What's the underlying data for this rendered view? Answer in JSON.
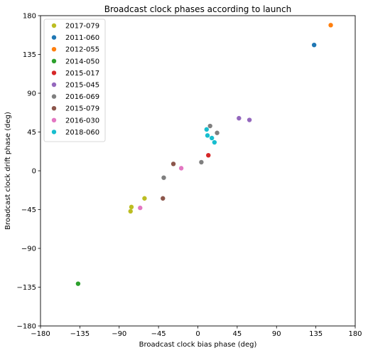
{
  "chart_data": {
    "type": "scatter",
    "title": "Broadcast clock phases according to launch",
    "xlabel": "Broadcast clock bias phase (deg)",
    "ylabel": "Broadcast clock drift phase (deg)",
    "xlim": [
      -180,
      180
    ],
    "ylim": [
      -180,
      180
    ],
    "xticks": [
      -180,
      -135,
      -90,
      -45,
      0,
      45,
      90,
      135,
      180
    ],
    "yticks": [
      -180,
      -135,
      -90,
      -45,
      0,
      45,
      90,
      135,
      180
    ],
    "grid": false,
    "legend_position": "top-left",
    "series": [
      {
        "name": "2017-079",
        "color": "#bcbd22",
        "points": [
          [
            -77,
            -47
          ],
          [
            -76,
            -42
          ],
          [
            -61,
            -32
          ]
        ]
      },
      {
        "name": "2011-060",
        "color": "#1f77b4",
        "points": [
          [
            133,
            146
          ]
        ]
      },
      {
        "name": "2012-055",
        "color": "#ff7f0e",
        "points": [
          [
            152,
            169
          ]
        ]
      },
      {
        "name": "2014-050",
        "color": "#2ca02c",
        "points": [
          [
            -137,
            -131
          ]
        ]
      },
      {
        "name": "2015-017",
        "color": "#d62728",
        "points": [
          [
            12,
            18
          ]
        ]
      },
      {
        "name": "2015-045",
        "color": "#9467bd",
        "points": [
          [
            47,
            61
          ],
          [
            59,
            59
          ]
        ]
      },
      {
        "name": "2016-069",
        "color": "#7f7f7f",
        "points": [
          [
            -39,
            -8
          ],
          [
            4,
            10
          ],
          [
            14,
            52
          ],
          [
            22,
            44
          ]
        ]
      },
      {
        "name": "2015-079",
        "color": "#8c564b",
        "points": [
          [
            -28,
            8
          ],
          [
            -40,
            -32
          ]
        ]
      },
      {
        "name": "2016-030",
        "color": "#e377c2",
        "points": [
          [
            -19,
            3
          ],
          [
            -66,
            -43
          ]
        ]
      },
      {
        "name": "2018-060",
        "color": "#17becf",
        "points": [
          [
            10,
            48
          ],
          [
            11,
            41
          ],
          [
            16,
            38
          ],
          [
            19,
            33
          ]
        ]
      }
    ]
  }
}
